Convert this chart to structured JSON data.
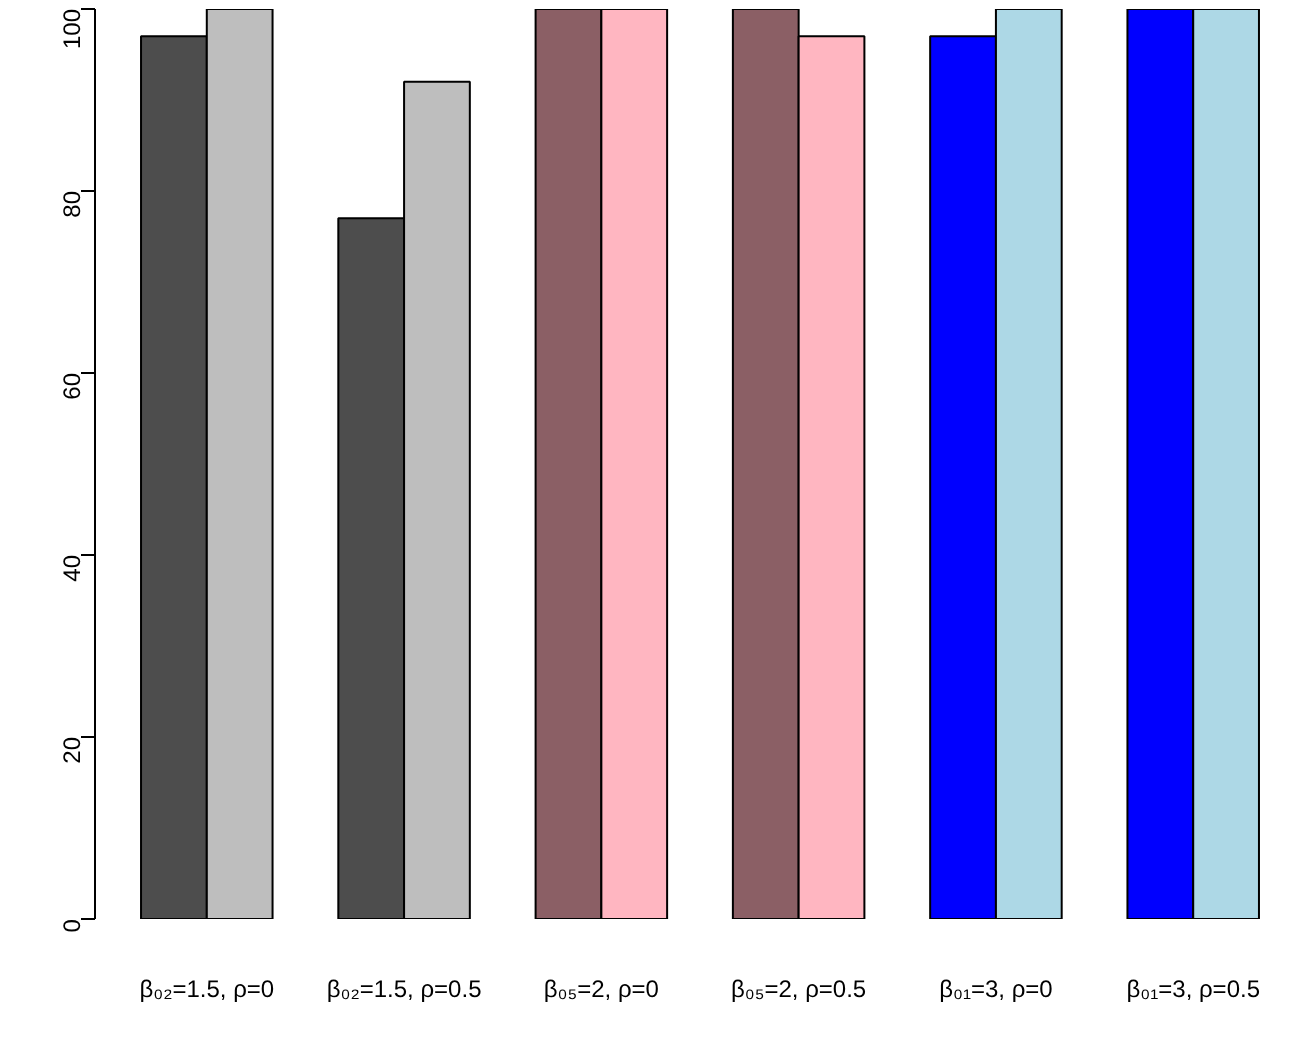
{
  "chart_data": {
    "type": "bar",
    "categories": [
      "β₀₂=1.5, ρ=0",
      "β₀₂=1.5, ρ=0.5",
      "β₀₅=2, ρ=0",
      "β₀₅=2, ρ=0.5",
      "β₀₁=3, ρ=0",
      "β₀₁=3, ρ=0.5"
    ],
    "series": [
      {
        "colors": [
          "#4d4d4d",
          "#4d4d4d",
          "#8b5f65",
          "#8b5f65",
          "#0000ff",
          "#0000ff"
        ],
        "values": [
          97,
          77,
          100,
          100,
          97,
          100
        ]
      },
      {
        "colors": [
          "#bebebe",
          "#bebebe",
          "#ffb6c1",
          "#ffb6c1",
          "#add8e6",
          "#add8e6"
        ],
        "values": [
          100,
          92,
          100,
          97,
          100,
          100
        ]
      }
    ],
    "ylim": [
      0,
      100
    ],
    "yticks": [
      0,
      20,
      40,
      60,
      80,
      100
    ],
    "grid": false
  }
}
